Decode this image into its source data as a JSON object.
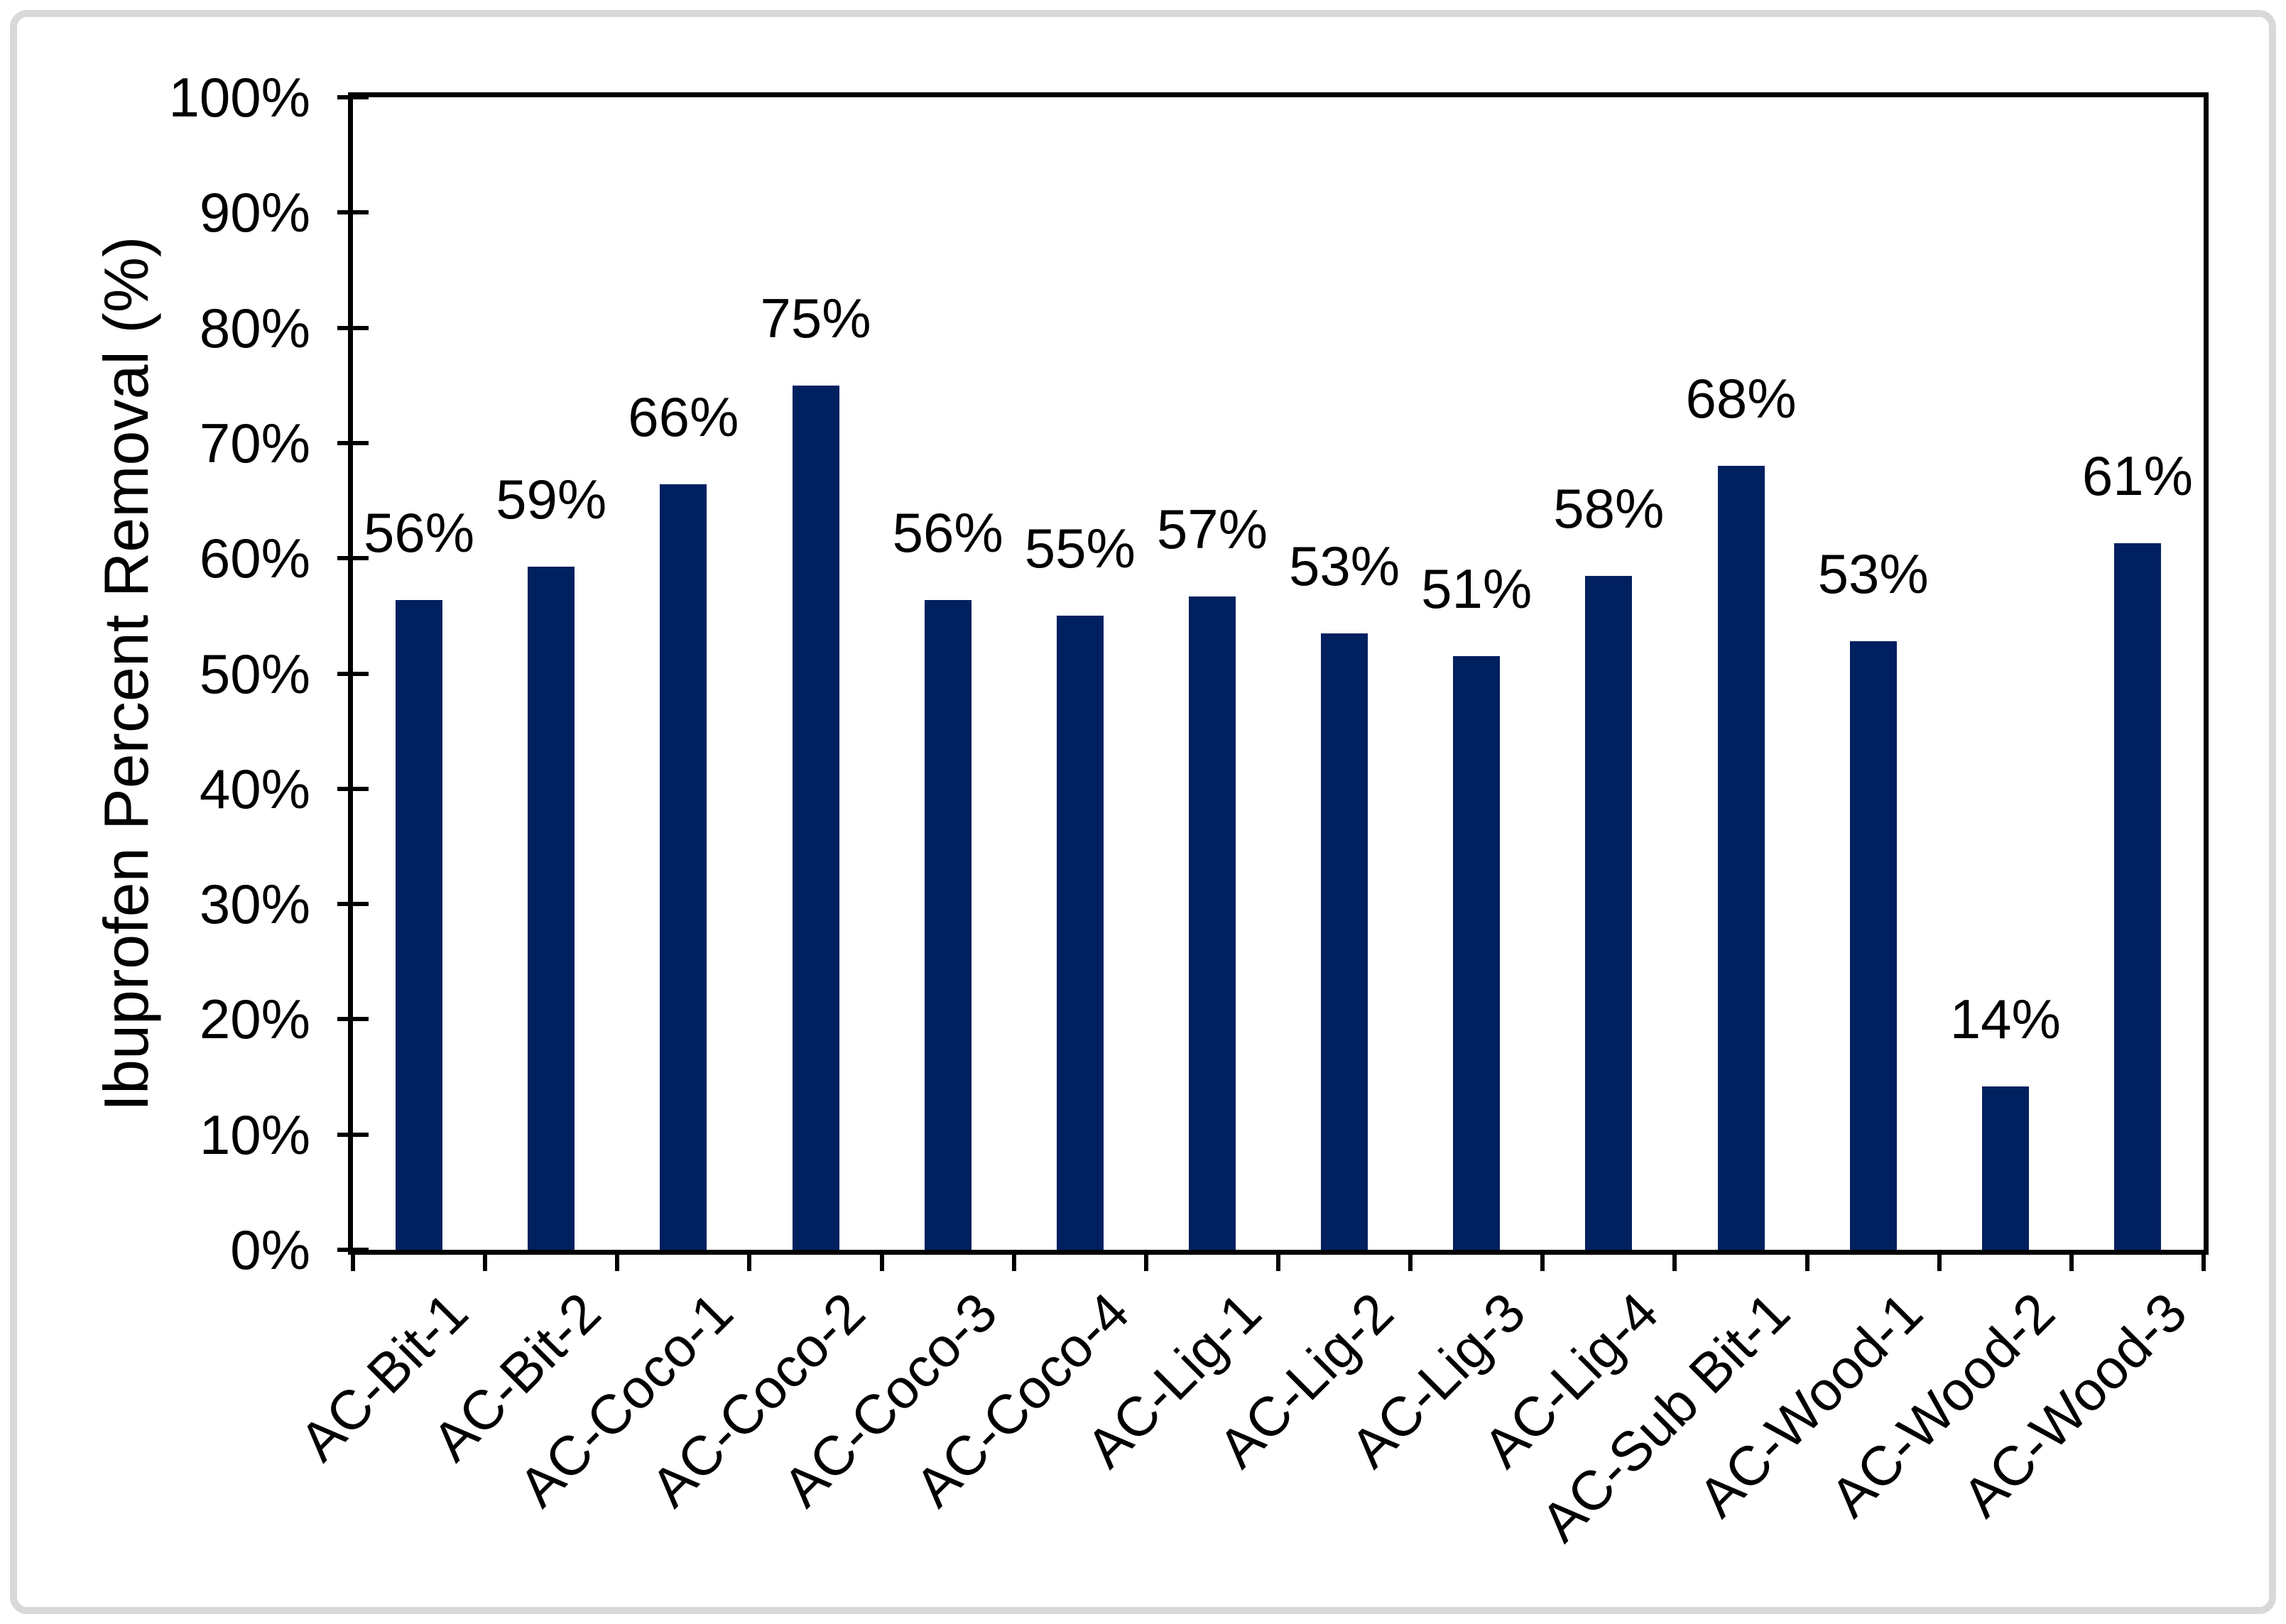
{
  "chart_data": {
    "type": "bar",
    "title": "",
    "ylabel": "Ibuprofen Percent Removal (%)",
    "xlabel": "",
    "categories": [
      "AC-Bit-1",
      "AC-Bit-2",
      "AC-Coco-1",
      "AC-Coco-2",
      "AC-Coco-3",
      "AC-Coco-4",
      "AC-Lig-1",
      "AC-Lig-2",
      "AC-Lig-3",
      "AC-Lig-4",
      "AC-Sub Bit-1",
      "AC-Wood-1",
      "AC-Wood-2",
      "AC-Wood-3"
    ],
    "values": [
      56.4,
      59.3,
      66.4,
      75.0,
      56.4,
      55.0,
      56.7,
      53.5,
      51.5,
      58.5,
      68.0,
      52.8,
      14.2,
      61.3
    ],
    "bar_labels": [
      "56%",
      "59%",
      "66%",
      "75%",
      "56%",
      "55%",
      "57%",
      "53%",
      "51%",
      "58%",
      "68%",
      "53%",
      "14%",
      "61%"
    ],
    "y_tick_labels": [
      "0%",
      "10%",
      "20%",
      "30%",
      "40%",
      "50%",
      "60%",
      "70%",
      "80%",
      "90%",
      "100%"
    ],
    "ylim": [
      0,
      100
    ],
    "grid": false,
    "legend": false,
    "x_tick_rotation_deg": 45,
    "colors": {
      "bar": "#002060",
      "axis": "#000000",
      "text": "#000000",
      "chart_border": "#D9D9D9",
      "background": "#FFFFFF"
    }
  }
}
